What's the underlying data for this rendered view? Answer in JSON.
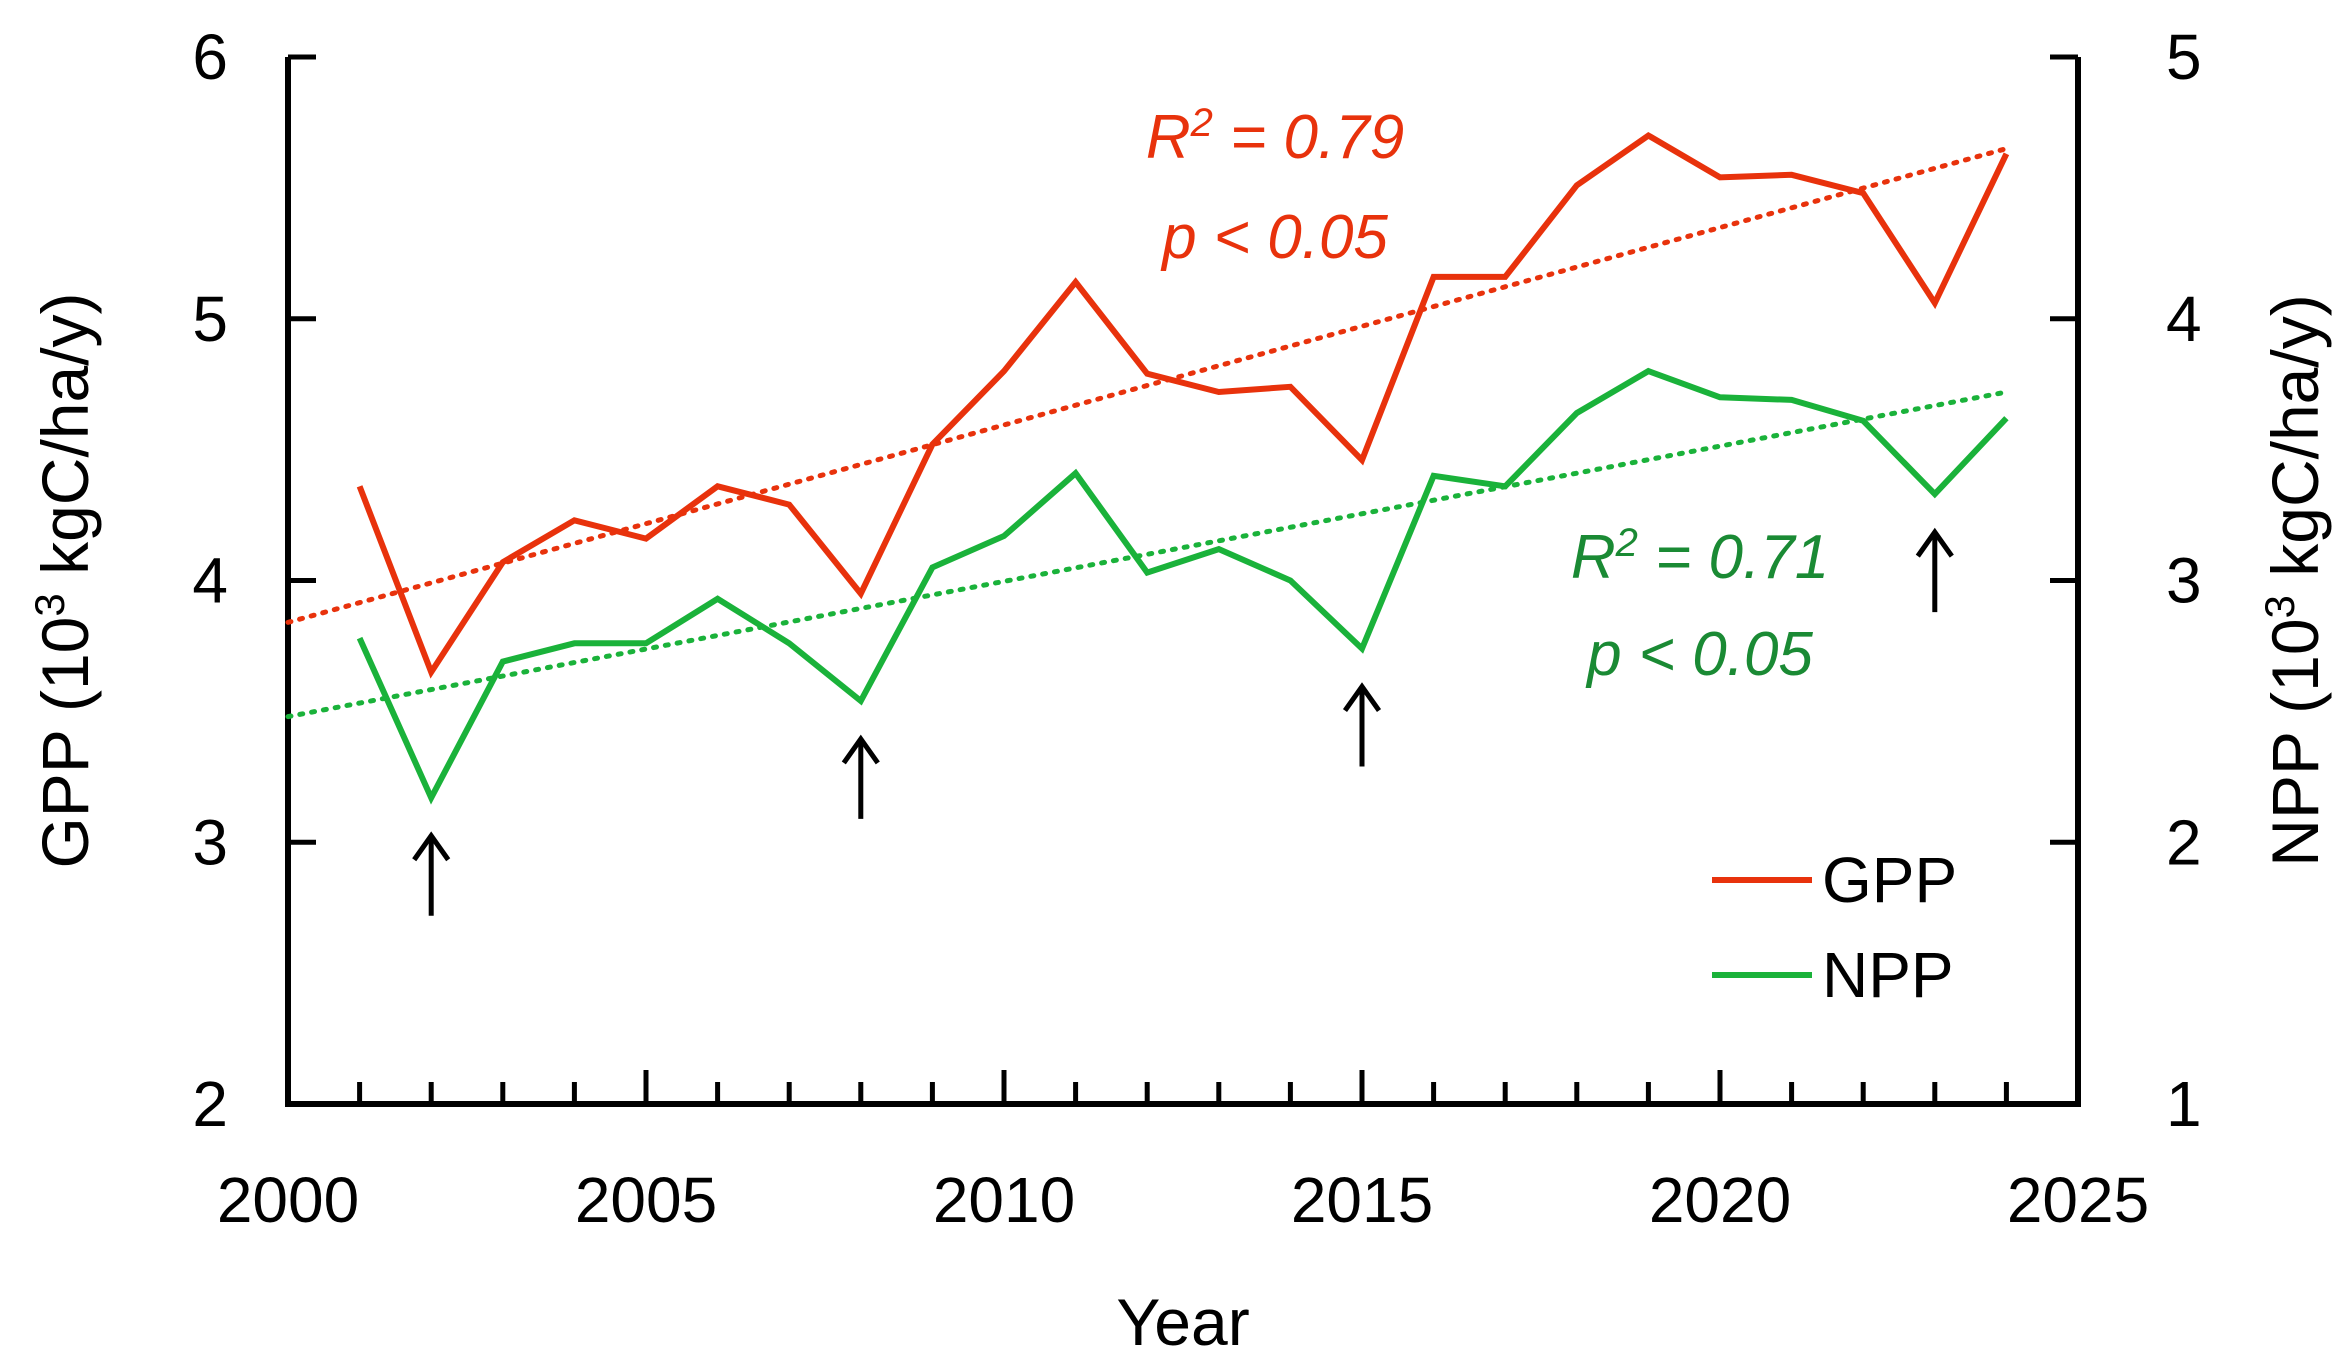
{
  "chart_data": {
    "type": "line",
    "xlabel": "Year",
    "ylabel_left": {
      "prefix": "GPP (10",
      "sup": "3",
      "suffix": " kgC/ha/y)"
    },
    "ylabel_right": {
      "prefix": "NPP (10",
      "sup": "3",
      "suffix": " kgC/ha/y)"
    },
    "xlim": [
      2000,
      2025
    ],
    "x_ticks": [
      2000,
      2005,
      2010,
      2015,
      2020,
      2025
    ],
    "ylim_left": [
      2,
      6
    ],
    "y_ticks_left": [
      2,
      3,
      4,
      5,
      6
    ],
    "ylim_right": [
      1,
      5
    ],
    "y_ticks_right": [
      1,
      2,
      3,
      4,
      5
    ],
    "x": [
      2001,
      2002,
      2003,
      2004,
      2005,
      2006,
      2007,
      2008,
      2009,
      2010,
      2011,
      2012,
      2013,
      2014,
      2015,
      2016,
      2017,
      2018,
      2019,
      2020,
      2021,
      2022,
      2023,
      2024
    ],
    "series": [
      {
        "name": "GPP",
        "axis": "left",
        "color": "#e8320c",
        "values": [
          4.36,
          3.65,
          4.07,
          4.23,
          4.16,
          4.36,
          4.29,
          3.95,
          4.52,
          4.8,
          5.14,
          4.79,
          4.72,
          4.74,
          4.46,
          5.16,
          5.16,
          5.51,
          5.7,
          5.54,
          5.55,
          5.48,
          5.06,
          5.63
        ],
        "trend": {
          "x": [
            2000,
            2024
          ],
          "y": [
            3.84,
            5.65
          ]
        }
      },
      {
        "name": "NPP",
        "axis": "right",
        "color": "#1ab23a",
        "values": [
          2.78,
          2.17,
          2.69,
          2.76,
          2.76,
          2.93,
          2.76,
          2.54,
          3.05,
          3.17,
          3.41,
          3.03,
          3.12,
          3.0,
          2.74,
          3.4,
          3.36,
          3.64,
          3.8,
          3.7,
          3.69,
          3.61,
          3.33,
          3.62
        ],
        "trend": {
          "x": [
            2000,
            2024
          ],
          "y": [
            2.48,
            3.72
          ]
        }
      }
    ],
    "annotations": [
      {
        "lines": [
          {
            "r_label": "R",
            "sup": "2",
            "rest": " = 0.79"
          },
          {
            "text": "p < 0.05"
          }
        ],
        "color": "#e8320c",
        "series": "GPP"
      },
      {
        "lines": [
          {
            "r_label": "R",
            "sup": "2",
            "rest": " = 0.71"
          },
          {
            "text": "p < 0.05"
          }
        ],
        "color": "#1a8a34",
        "series": "NPP"
      }
    ],
    "arrows": [
      {
        "year": 2002,
        "direction": "up",
        "points_to": "NPP minimum"
      },
      {
        "year": 2008,
        "direction": "up",
        "points_to": "NPP minimum"
      },
      {
        "year": 2015,
        "direction": "up",
        "points_to": "NPP minimum"
      },
      {
        "year": 2023,
        "direction": "up",
        "points_to": "NPP minimum"
      }
    ],
    "legend": {
      "position": "bottom-right",
      "entries": [
        "GPP",
        "NPP"
      ]
    }
  }
}
